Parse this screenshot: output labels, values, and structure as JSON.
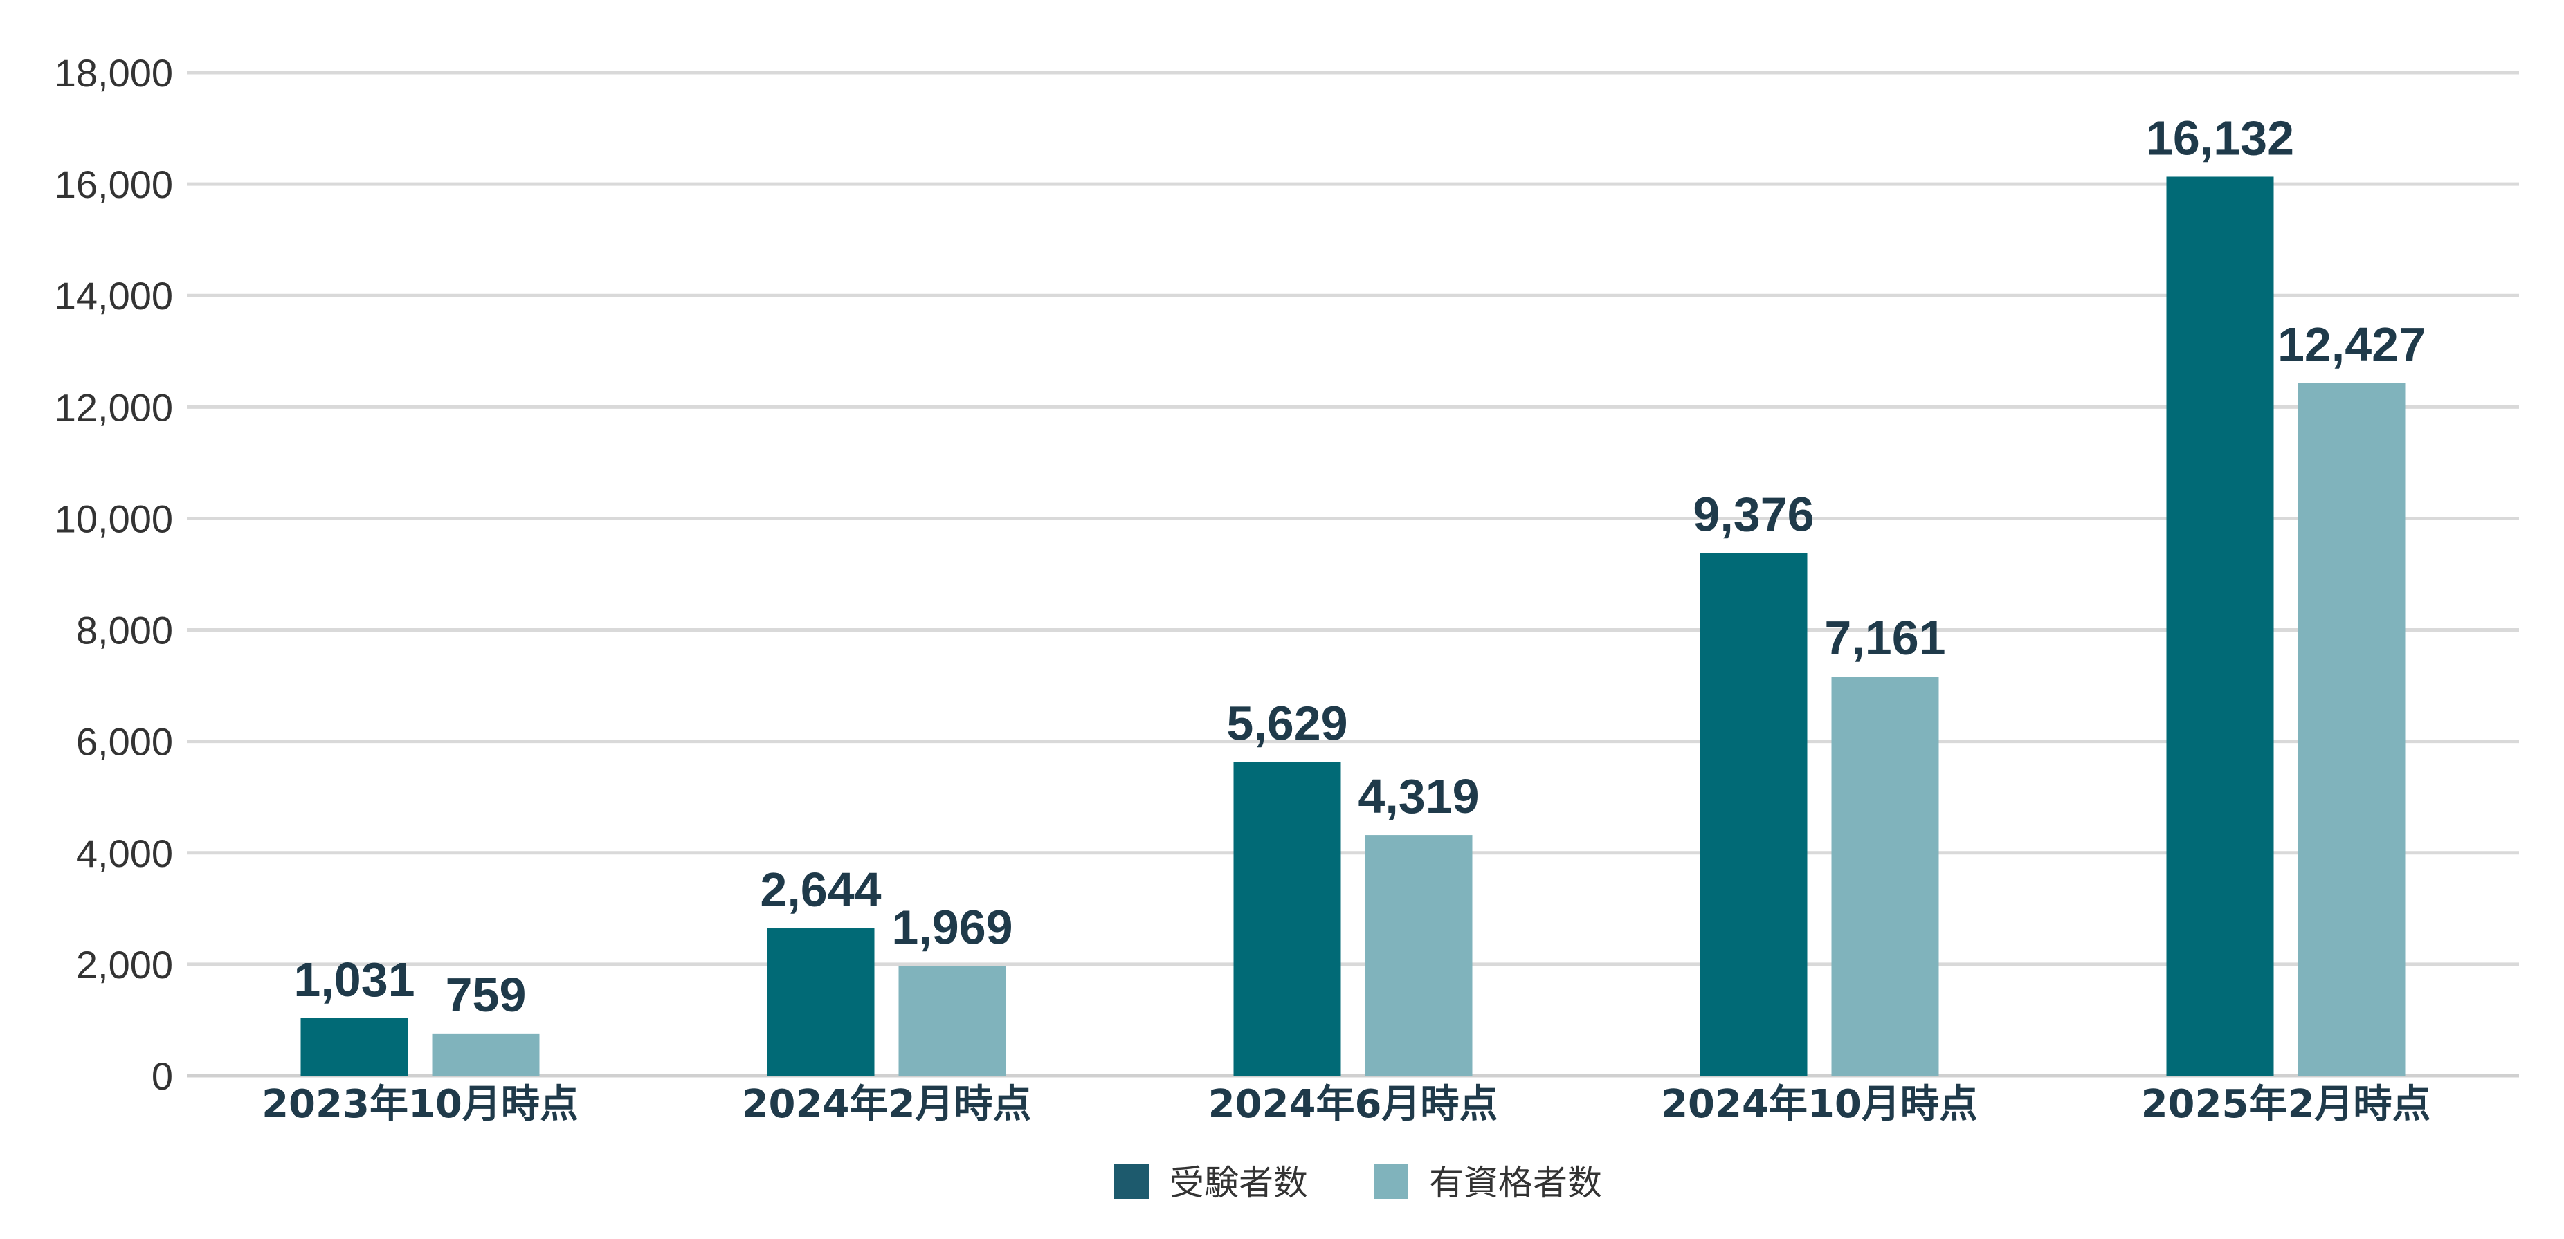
{
  "chart_data": {
    "type": "bar",
    "categories": [
      "2023年10月時点",
      "2024年2月時点",
      "2024年6月時点",
      "2024年10月時点",
      "2025年2月時点"
    ],
    "series": [
      {
        "name": "受験者数",
        "values": [
          1031,
          2644,
          5629,
          9376,
          16132
        ],
        "color": "#016a76",
        "legend_color": "#1d5a6d"
      },
      {
        "name": "有資格者数",
        "values": [
          759,
          1969,
          4319,
          7161,
          12427
        ],
        "color": "#80b3bc",
        "legend_color": "#80b3bc"
      }
    ],
    "data_labels": [
      [
        "1,031",
        "2,644",
        "5,629",
        "9,376",
        "16,132"
      ],
      [
        "759",
        "1,969",
        "4,319",
        "7,161",
        "12,427"
      ]
    ],
    "y_ticks": [
      0,
      2000,
      4000,
      6000,
      8000,
      10000,
      12000,
      14000,
      16000,
      18000
    ],
    "y_tick_labels": [
      "0",
      "2,000",
      "4,000",
      "6,000",
      "8,000",
      "10,000",
      "12,000",
      "14,000",
      "16,000",
      "18,000"
    ],
    "ylim": [
      0,
      18000
    ],
    "grid": true,
    "legend_position": "bottom-center",
    "title": "",
    "xlabel": "",
    "ylabel": ""
  }
}
